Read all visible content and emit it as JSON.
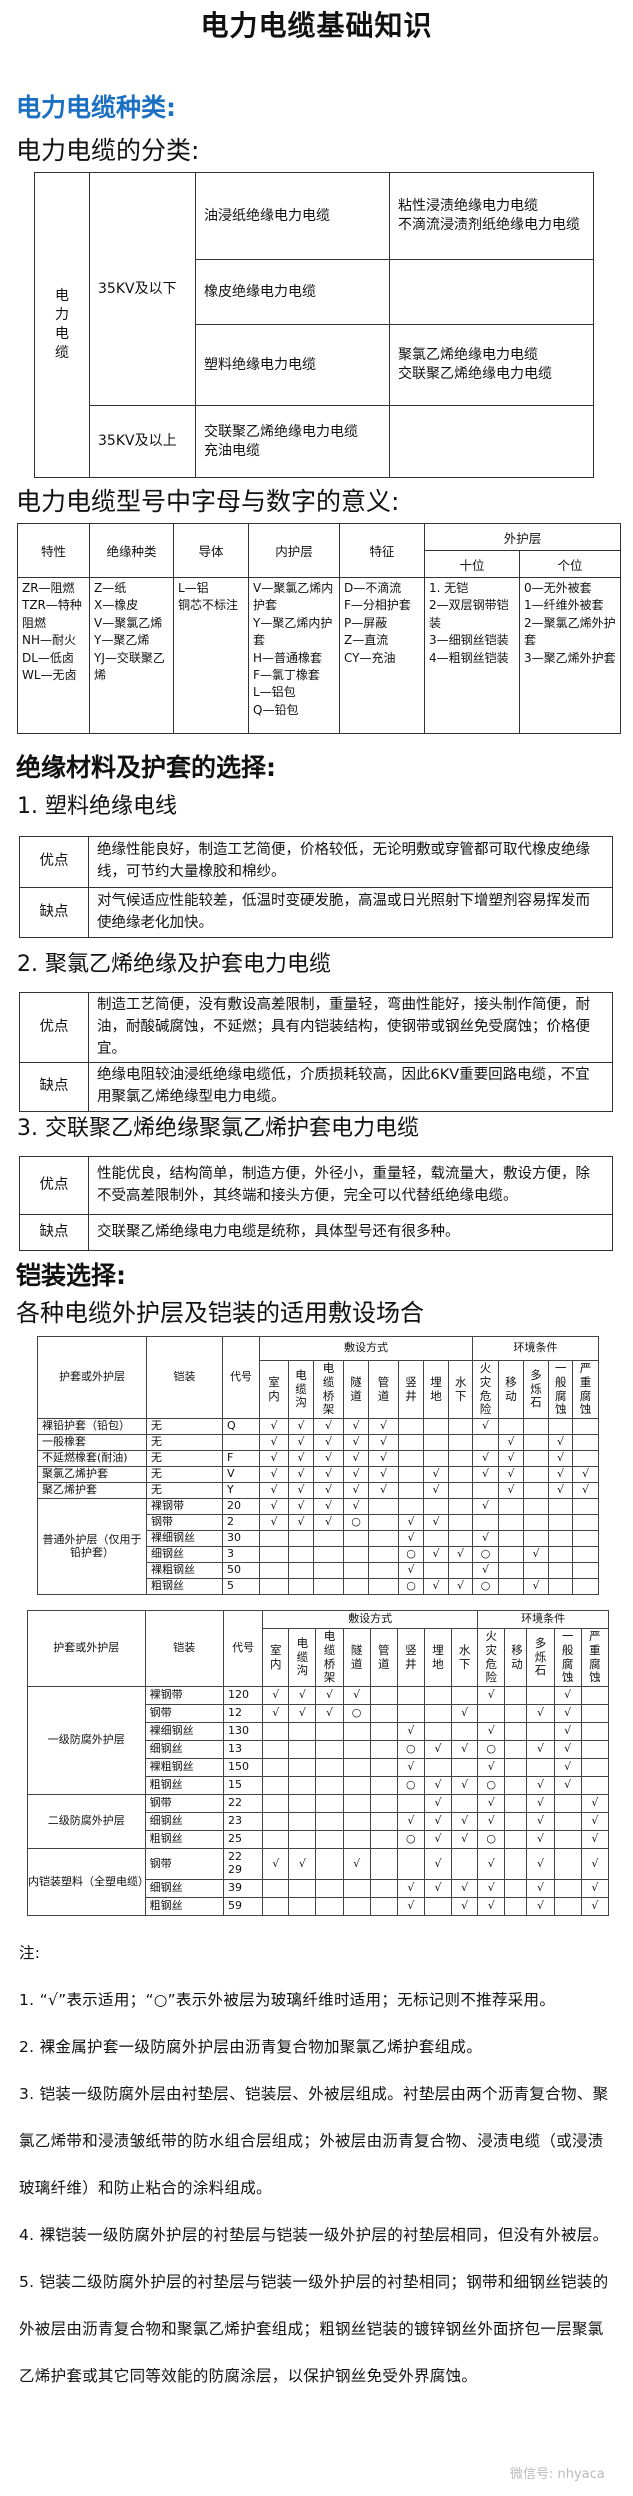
{
  "title": "电力电缆基础知识",
  "section_types": {
    "heading": "电力电缆种类:",
    "classification_heading": "电力电缆的分类:",
    "classification": {
      "root": "电力电缆",
      "groups": [
        {
          "voltage": "35KV及以下",
          "rows": [
            {
              "type": "油浸纸绝缘电力电缆",
              "subtypes": [
                "粘性浸渍绝缘电力电缆",
                "不滴流浸渍剂纸绝缘电力电缆"
              ]
            },
            {
              "type": "橡皮绝缘电力电缆",
              "subtypes": []
            },
            {
              "type": "塑料绝缘电力电缆",
              "subtypes": [
                "聚氯乙烯绝缘电力电缆",
                "交联聚乙烯绝缘电力电缆"
              ]
            }
          ]
        },
        {
          "voltage": "35KV及以上",
          "rows": [
            {
              "type_lines": [
                "交联聚乙烯绝缘电力电缆",
                "充油电缆"
              ],
              "subtypes": []
            }
          ]
        }
      ]
    }
  },
  "section_model": {
    "heading": "电力电缆型号中字母与数字的意义:",
    "headers": [
      "特性",
      "绝缘种类",
      "导体",
      "内护层",
      "特征",
      "外护层"
    ],
    "outer_sub_headers": [
      "十位",
      "个位"
    ],
    "columns": [
      [
        "ZR—阻燃",
        "TZR—特种阻燃",
        "NH—耐火",
        "DL—低卤",
        "WL—无卤"
      ],
      [
        "Z—纸",
        "X—橡皮",
        "V—聚氯乙烯",
        "Y—聚乙烯",
        "YJ—交联聚乙烯"
      ],
      [
        "L—铝",
        "铜芯不标注"
      ],
      [
        "V—聚氯乙烯内护套",
        "Y—聚乙烯内护套",
        "H—普通橡套",
        "F—氯丁橡套",
        "L—铝包",
        "Q—铅包"
      ],
      [
        "D—不滴流",
        "F—分相护套",
        "P—屏蔽",
        "Z—直流",
        "CY—充油"
      ],
      [
        "1. 无铠",
        "2—双层钢带铠装",
        "3—细钢丝铠装",
        "4—粗钢丝铠装"
      ],
      [
        "0—无外被套",
        "1—纤维外被套",
        "2—聚氯乙烯外护套",
        "3—聚乙烯外护套"
      ]
    ]
  },
  "section_insulation": {
    "heading": "绝缘材料及护套的选择:",
    "pros_label": "优点",
    "cons_label": "缺点",
    "items": [
      {
        "heading": "1. 塑料绝缘电线",
        "pros": "绝缘性能良好，制造工艺简便，价格较低，无论明敷或穿管都可取代橡皮绝缘线，可节约大量橡胶和棉纱。",
        "cons": "对气候适应性能较差，低温时变硬发脆，高温或日光照射下增塑剂容易挥发而使绝缘老化加快。"
      },
      {
        "heading": "2. 聚氯乙烯绝缘及护套电力电缆",
        "pros": "制造工艺简便，没有敷设高差限制，重量轻，弯曲性能好，接头制作简便，耐油，耐酸碱腐蚀，不延燃；具有内铠装结构，使钢带或钢丝免受腐蚀；价格便宜。",
        "cons": "绝缘电阻较油浸纸绝缘电缆低，介质损耗较高，因此6KV重要回路电缆，不宜用聚氯乙烯绝缘型电力电缆。"
      },
      {
        "heading": "3. 交联聚乙烯绝缘聚氯乙烯护套电力电缆",
        "pros": "性能优良，结构简单，制造方便，外径小，重量轻，载流量大，敷设方便，除不受高差限制外，其终端和接头方便，完全可以代替纸绝缘电缆。",
        "cons": "交联聚乙烯绝缘电力电缆是统称，具体型号还有很多种。"
      }
    ]
  },
  "section_armor": {
    "heading": "铠装选择:",
    "subheading": "各种电缆外护层及铠装的适用敷设场合",
    "headers": {
      "outer": "护套或外护层",
      "armor": "铠装",
      "code": "代号",
      "laying": "敷设方式",
      "env": "环境条件",
      "laying_cols": [
        "室内",
        "电缆沟",
        "电缆桥架",
        "隧道",
        "管道",
        "竖井",
        "埋地",
        "水下"
      ],
      "env_cols": [
        "火灾危险",
        "移动",
        "多烁石",
        "一般腐蚀",
        "严重腐蚀"
      ]
    },
    "tables": [
      {
        "groups": [
          {
            "outer": "裸铅护套（铅包）",
            "rows": [
              {
                "armor": "无",
                "code": "Q",
                "marks": [
                  "√",
                  "√",
                  "√",
                  "√",
                  "√",
                  "",
                  "",
                  "",
                  "√",
                  "",
                  "",
                  "",
                  ""
                ]
              }
            ]
          },
          {
            "outer": "一般橡套",
            "rows": [
              {
                "armor": "无",
                "code": "",
                "marks": [
                  "√",
                  "√",
                  "√",
                  "√",
                  "√",
                  "",
                  "",
                  "",
                  "",
                  "√",
                  "",
                  "√",
                  ""
                ]
              }
            ]
          },
          {
            "outer": "不延燃橡套(耐油)",
            "rows": [
              {
                "armor": "无",
                "code": "F",
                "marks": [
                  "√",
                  "√",
                  "√",
                  "√",
                  "√",
                  "",
                  "",
                  "",
                  "√",
                  "√",
                  "",
                  "√",
                  ""
                ]
              }
            ]
          },
          {
            "outer": "聚氯乙烯护套",
            "rows": [
              {
                "armor": "无",
                "code": "V",
                "marks": [
                  "√",
                  "√",
                  "√",
                  "√",
                  "√",
                  "",
                  "√",
                  "",
                  "√",
                  "√",
                  "",
                  "√",
                  "√"
                ]
              }
            ]
          },
          {
            "outer": "聚乙烯护套",
            "rows": [
              {
                "armor": "无",
                "code": "Y",
                "marks": [
                  "√",
                  "√",
                  "√",
                  "√",
                  "√",
                  "",
                  "√",
                  "",
                  "",
                  "√",
                  "",
                  "√",
                  "√"
                ]
              }
            ]
          },
          {
            "outer": "普通外护层（仅用于铅护套）",
            "rows": [
              {
                "armor": "裸钢带",
                "code": "20",
                "marks": [
                  "√",
                  "√",
                  "√",
                  "√",
                  "",
                  "",
                  "",
                  "",
                  "√",
                  "",
                  "",
                  "",
                  ""
                ]
              },
              {
                "armor": "钢带",
                "code": "2",
                "marks": [
                  "√",
                  "√",
                  "√",
                  "○",
                  "",
                  "√",
                  "√",
                  "",
                  "",
                  "",
                  "",
                  "",
                  ""
                ]
              },
              {
                "armor": "裸细钢丝",
                "code": "30",
                "marks": [
                  "",
                  "",
                  "",
                  "",
                  "",
                  "√",
                  "",
                  "",
                  "√",
                  "",
                  "",
                  "",
                  ""
                ]
              },
              {
                "armor": "细钢丝",
                "code": "3",
                "marks": [
                  "",
                  "",
                  "",
                  "",
                  "",
                  "○",
                  "√",
                  "√",
                  "○",
                  "",
                  "√",
                  "",
                  ""
                ]
              },
              {
                "armor": "裸粗钢丝",
                "code": "50",
                "marks": [
                  "",
                  "",
                  "",
                  "",
                  "",
                  "√",
                  "",
                  "",
                  "√",
                  "",
                  "",
                  "",
                  ""
                ]
              },
              {
                "armor": "粗钢丝",
                "code": "5",
                "marks": [
                  "",
                  "",
                  "",
                  "",
                  "",
                  "○",
                  "√",
                  "√",
                  "○",
                  "",
                  "√",
                  "",
                  ""
                ]
              }
            ]
          }
        ]
      },
      {
        "groups": [
          {
            "outer": "一级防腐外护层",
            "rows": [
              {
                "armor": "裸钢带",
                "code": "120",
                "marks": [
                  "√",
                  "√",
                  "√",
                  "√",
                  "",
                  "",
                  "",
                  "",
                  "√",
                  "",
                  "",
                  "√",
                  ""
                ]
              },
              {
                "armor": "钢带",
                "code": "12",
                "marks": [
                  "√",
                  "√",
                  "√",
                  "○",
                  "",
                  "",
                  "",
                  "√",
                  "",
                  "",
                  "√",
                  "√",
                  ""
                ]
              },
              {
                "armor": "裸细钢丝",
                "code": "130",
                "marks": [
                  "",
                  "",
                  "",
                  "",
                  "",
                  "√",
                  "",
                  "",
                  "√",
                  "",
                  "",
                  "√",
                  ""
                ]
              },
              {
                "armor": "细钢丝",
                "code": "13",
                "marks": [
                  "",
                  "",
                  "",
                  "",
                  "",
                  "○",
                  "√",
                  "√",
                  "○",
                  "",
                  "√",
                  "√",
                  ""
                ]
              },
              {
                "armor": "裸粗钢丝",
                "code": "150",
                "marks": [
                  "",
                  "",
                  "",
                  "",
                  "",
                  "√",
                  "",
                  "",
                  "√",
                  "",
                  "",
                  "√",
                  ""
                ]
              },
              {
                "armor": "粗钢丝",
                "code": "15",
                "marks": [
                  "",
                  "",
                  "",
                  "",
                  "",
                  "○",
                  "√",
                  "√",
                  "○",
                  "",
                  "√",
                  "√",
                  ""
                ]
              }
            ]
          },
          {
            "outer": "二级防腐外护层",
            "rows": [
              {
                "armor": "钢带",
                "code": "22",
                "marks": [
                  "",
                  "",
                  "",
                  "",
                  "",
                  "",
                  "√",
                  "",
                  "√",
                  "",
                  "√",
                  "",
                  "√"
                ]
              },
              {
                "armor": "细钢丝",
                "code": "23",
                "marks": [
                  "",
                  "",
                  "",
                  "",
                  "",
                  "√",
                  "√",
                  "√",
                  "√",
                  "",
                  "√",
                  "",
                  "√"
                ]
              },
              {
                "armor": "粗钢丝",
                "code": "25",
                "marks": [
                  "",
                  "",
                  "",
                  "",
                  "",
                  "○",
                  "√",
                  "√",
                  "○",
                  "",
                  "√",
                  "",
                  "√"
                ]
              }
            ]
          },
          {
            "outer": "内铠装塑料（全塑电缆）",
            "rows": [
              {
                "armor": "钢带",
                "code": "22 29",
                "marks": [
                  "√",
                  "√",
                  "",
                  "√",
                  "",
                  "",
                  "√",
                  "",
                  "√",
                  "",
                  "√",
                  "",
                  "√"
                ]
              },
              {
                "armor": "细钢丝",
                "code": "39",
                "marks": [
                  "",
                  "",
                  "",
                  "",
                  "",
                  "√",
                  "√",
                  "√",
                  "√",
                  "",
                  "√",
                  "",
                  "√"
                ]
              },
              {
                "armor": "粗钢丝",
                "code": "59",
                "marks": [
                  "",
                  "",
                  "",
                  "",
                  "",
                  "√",
                  "",
                  "√",
                  "√",
                  "",
                  "√",
                  "",
                  "√"
                ]
              }
            ]
          }
        ]
      }
    ]
  },
  "notes": {
    "label": "注:",
    "items": [
      "1. “√”表示适用；“○”表示外被层为玻璃纤维时适用；无标记则不推荐采用。",
      "2.  裸金属护套一级防腐外护层由沥青复合物加聚氯乙烯护套组成。",
      "3. 铠装一级防腐外层由衬垫层、铠装层、外被层组成。衬垫层由两个沥青复合物、聚氯乙烯带和浸渍皱纸带的防水组合层组成；外被层由沥青复合物、浸渍电缆（或浸渍玻璃纤维）和防止粘合的涂料组成。",
      "4. 裸铠装一级防腐外护层的衬垫层与铠装一级外护层的衬垫层相同，但没有外被层。",
      "5. 铠装二级防腐外护层的衬垫层与铠装一级外护层的衬垫相同；钢带和细钢丝铠装的外被层由沥青复合物和聚氯乙烯护套组成；粗钢丝铠装的镀锌钢丝外面挤包一层聚氯乙烯护套或其它同等效能的防腐涂层，以保护钢丝免受外界腐蚀。"
    ]
  },
  "watermark": "微信号: nhyaca",
  "colors": {
    "accent_heading": "#1c70c2",
    "border": "#333333"
  }
}
